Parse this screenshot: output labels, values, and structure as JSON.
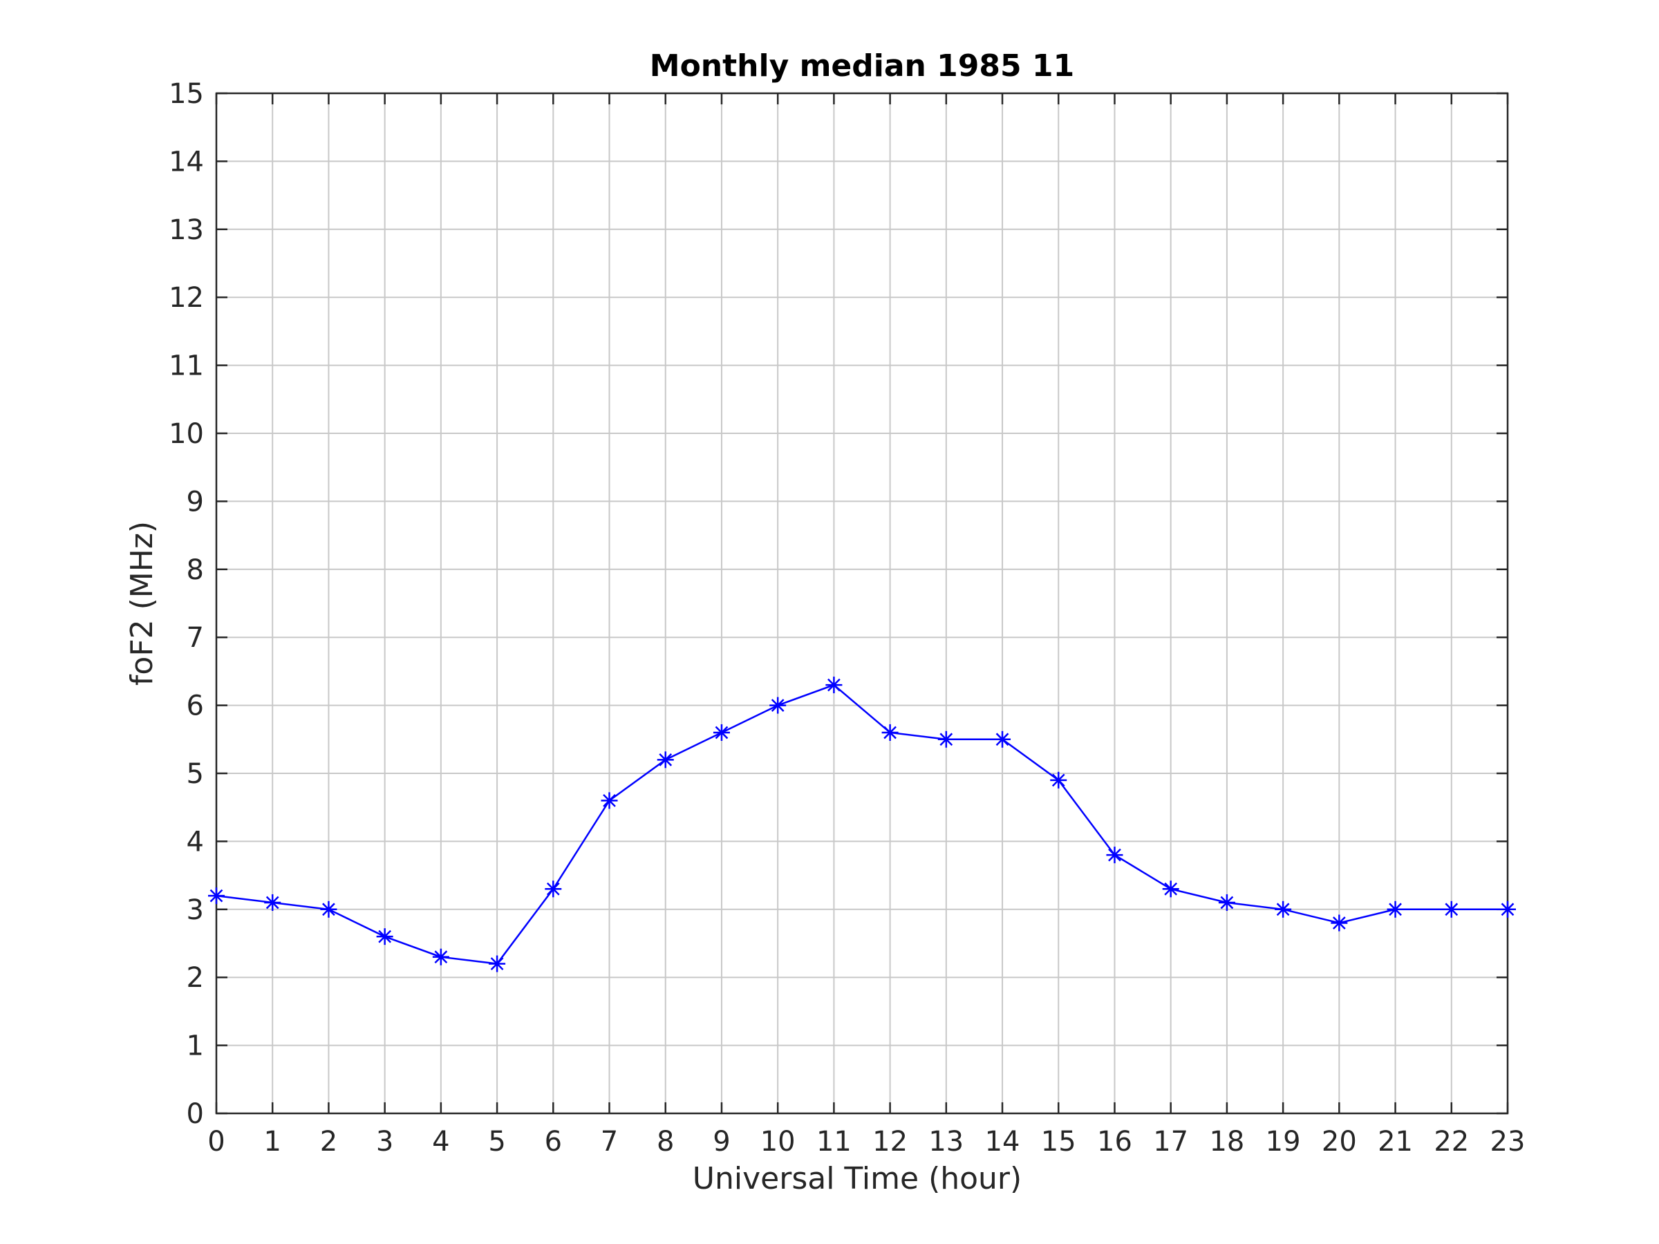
{
  "chart_data": {
    "type": "line",
    "title": "Monthly median 1985 11",
    "xlabel": "Universal Time (hour)",
    "ylabel": "foF2 (MHz)",
    "xlim": [
      0,
      23
    ],
    "ylim": [
      0,
      15
    ],
    "x_ticks": [
      "0",
      "1",
      "2",
      "3",
      "4",
      "5",
      "6",
      "7",
      "8",
      "9",
      "10",
      "11",
      "12",
      "13",
      "14",
      "15",
      "16",
      "17",
      "18",
      "19",
      "20",
      "21",
      "22",
      "23"
    ],
    "y_ticks": [
      "0",
      "1",
      "2",
      "3",
      "4",
      "5",
      "6",
      "7",
      "8",
      "9",
      "10",
      "11",
      "12",
      "13",
      "14",
      "15"
    ],
    "grid": true,
    "marker": "asterisk",
    "series": [
      {
        "color": "#0000ff",
        "x": [
          0,
          1,
          2,
          3,
          4,
          5,
          6,
          7,
          8,
          9,
          10,
          11,
          12,
          13,
          14,
          15,
          16,
          17,
          18,
          19,
          20,
          21,
          22,
          23
        ],
        "y": [
          3.2,
          3.1,
          3.0,
          2.6,
          2.3,
          2.2,
          3.3,
          4.6,
          5.2,
          5.6,
          6.0,
          6.3,
          5.6,
          5.5,
          5.5,
          4.9,
          3.8,
          3.3,
          3.1,
          3.0,
          2.8,
          3.0,
          3.0,
          3.0
        ]
      }
    ]
  }
}
